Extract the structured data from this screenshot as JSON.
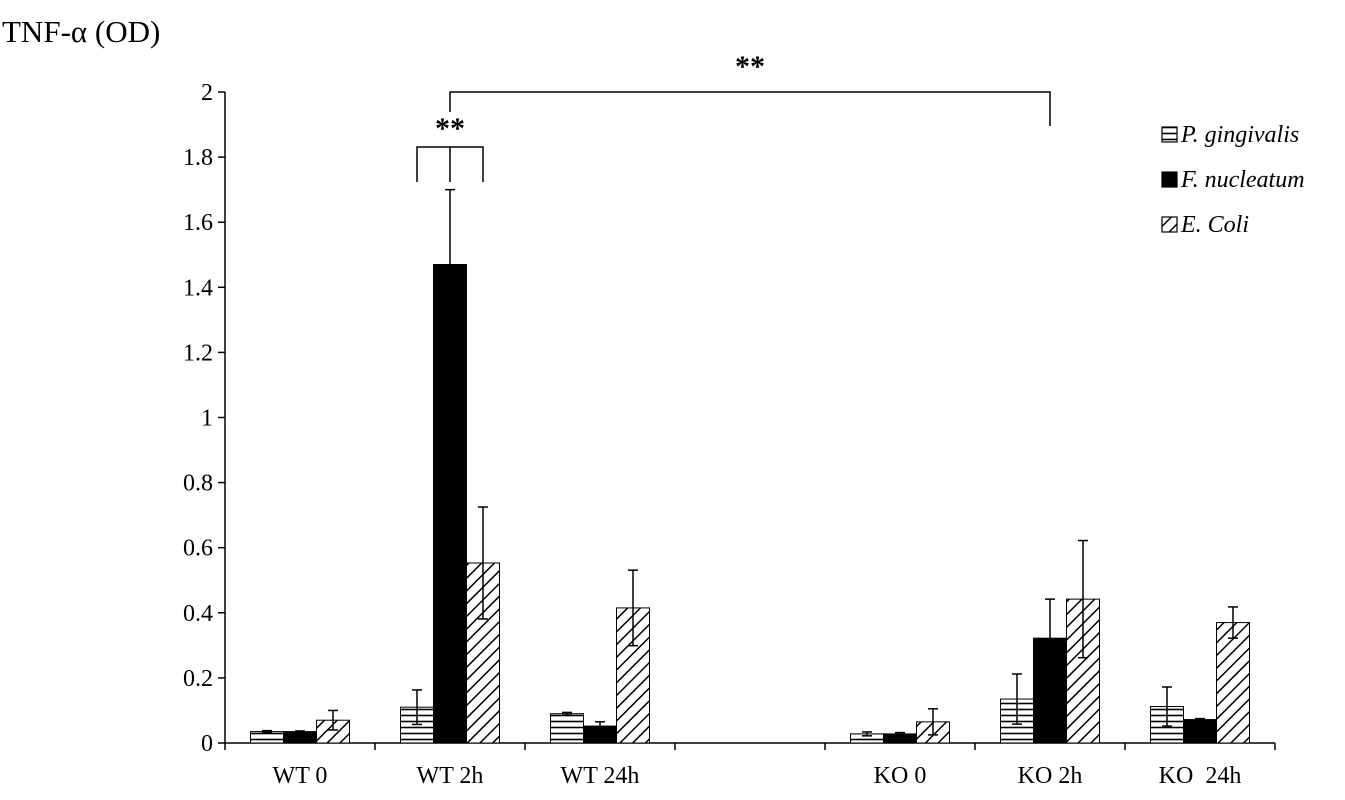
{
  "chart_data": {
    "type": "bar",
    "ylabel": "TNF-α (OD)",
    "ylim": [
      0,
      2
    ],
    "yticks": [
      "0",
      "0.2",
      "0.4",
      "0.6",
      "0.8",
      "1",
      "1.2",
      "1.4",
      "1.6",
      "1.8",
      "2"
    ],
    "categories": [
      "WT 0",
      "WT 2h",
      "WT 24h",
      "",
      "KO 0",
      "KO 2h",
      "KO  24h"
    ],
    "series": [
      {
        "name": "P. gingivalis",
        "pattern": "horizontal-stripes",
        "values": [
          0.035,
          0.11,
          0.09,
          null,
          0.028,
          0.135,
          0.112
        ],
        "errors": [
          0.003,
          0.053,
          0.004,
          null,
          0.006,
          0.077,
          0.06
        ]
      },
      {
        "name": "F. nucleatum",
        "pattern": "solid-black",
        "values": [
          0.035,
          1.47,
          0.052,
          null,
          0.028,
          0.322,
          0.072
        ],
        "errors": [
          0.002,
          0.23,
          0.013,
          null,
          0.004,
          0.12,
          0.003
        ]
      },
      {
        "name": "E. Coli",
        "pattern": "diagonal-stripes",
        "values": [
          0.07,
          0.553,
          0.415,
          null,
          0.065,
          0.442,
          0.37
        ],
        "errors": [
          0.03,
          0.172,
          0.116,
          null,
          0.04,
          0.18,
          0.048
        ]
      }
    ],
    "annotations": [
      {
        "text": "**",
        "type": "bracket",
        "category": "WT 2h",
        "spans": "P. gingivalis to E. Coli"
      },
      {
        "text": "**",
        "type": "bracket",
        "from": "WT 2h",
        "to": "KO 2h",
        "series": "F. nucleatum"
      }
    ],
    "legend_position": "top-right",
    "grid": false,
    "colors": {
      "bar_fill": "#000000",
      "background": "#ffffff",
      "pattern_bg": "#ffffff"
    }
  }
}
